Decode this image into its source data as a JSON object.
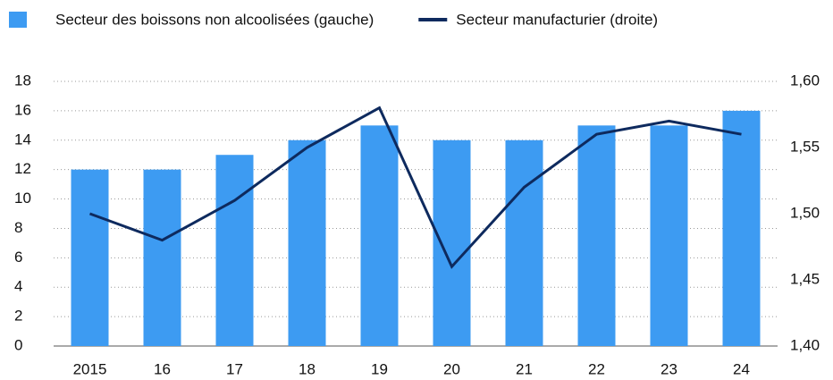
{
  "chart_data": {
    "type": "bar",
    "categories": [
      "2015",
      "16",
      "17",
      "18",
      "19",
      "20",
      "21",
      "22",
      "23",
      "24"
    ],
    "series": [
      {
        "name": "Secteur des boissons non alcoolisées (gauche)",
        "type": "bar",
        "color": "#3d9bf2",
        "values": [
          12,
          12,
          13,
          14,
          15,
          14,
          14,
          15,
          15,
          16
        ]
      },
      {
        "name": "Secteur manufacturier (droite)",
        "type": "line",
        "axis": "y2",
        "color": "#0e2a5e",
        "values": [
          1.5,
          1.48,
          1.51,
          1.55,
          1.58,
          1.46,
          1.52,
          1.56,
          1.57,
          1.56
        ]
      }
    ],
    "ylim": [
      0,
      18
    ],
    "yticks": [
      0,
      2,
      4,
      6,
      8,
      10,
      12,
      14,
      16,
      18
    ],
    "y2lim": [
      1.4,
      1.6
    ],
    "y2ticks": [
      {
        "value": 1.4,
        "label": "1,40"
      },
      {
        "value": 1.45,
        "label": "1,45"
      },
      {
        "value": 1.5,
        "label": "1,50"
      },
      {
        "value": 1.55,
        "label": "1,55"
      },
      {
        "value": 1.6,
        "label": "1,60"
      }
    ],
    "grid": true
  }
}
